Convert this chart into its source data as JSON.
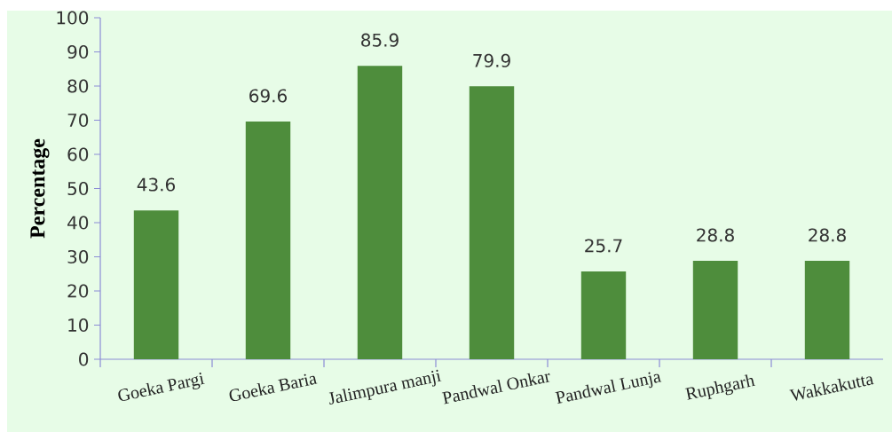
{
  "chart_data": {
    "type": "bar",
    "ylabel": "Percentage",
    "categories": [
      "Goeka Pargi",
      "Goeka Baria",
      "Jalimpura manji",
      "Pandwal Onkar",
      "Pandwal Lunja",
      "Ruphgarh",
      "Wakkakutta"
    ],
    "values": [
      43.6,
      69.6,
      85.9,
      79.9,
      25.7,
      28.8,
      28.8
    ],
    "color": "#4e8d3c",
    "ylim": [
      0,
      100
    ],
    "yticks": [
      0,
      10,
      20,
      30,
      40,
      50,
      60,
      70,
      80,
      90,
      100
    ],
    "data_labels": true
  }
}
